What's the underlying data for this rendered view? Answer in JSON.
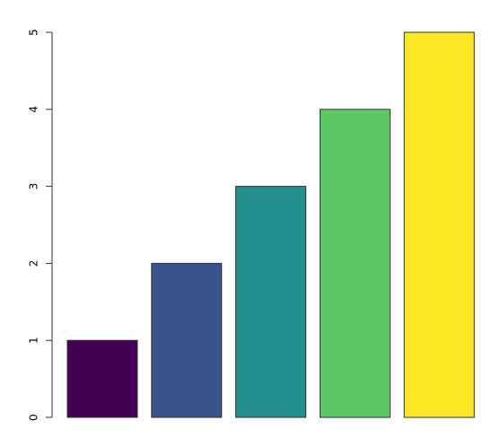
{
  "chart_data": {
    "type": "bar",
    "categories": [
      null,
      null,
      null,
      null,
      null
    ],
    "values": [
      1,
      2,
      3,
      4,
      5
    ],
    "colors": [
      "#440154",
      "#3b528b",
      "#21908c",
      "#5dc863",
      "#fde725"
    ],
    "ylim": [
      0,
      5
    ],
    "yticks": [
      0,
      1,
      2,
      3,
      4,
      5
    ]
  }
}
